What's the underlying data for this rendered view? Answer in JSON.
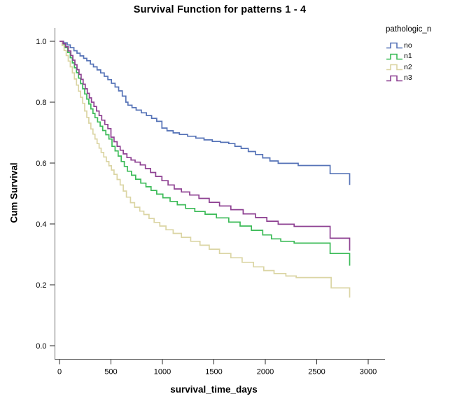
{
  "chart_data": {
    "type": "line",
    "subtype": "kaplan-meier-step",
    "title": "Survival Function for patterns 1 - 4",
    "xlabel": "survival_time_days",
    "ylabel": "Cum Survival",
    "legend_title": "pathologic_n",
    "legend_position": "top-right",
    "grid": false,
    "xlim": [
      0,
      3160
    ],
    "ylim": [
      0.0,
      1.0
    ],
    "x_ticks": [
      "0",
      "500",
      "1000",
      "1500",
      "2000",
      "2500",
      "3000"
    ],
    "x_tick_values": [
      0,
      500,
      1000,
      1500,
      2000,
      2500,
      3000
    ],
    "y_ticks": [
      "0.0",
      "0.2",
      "0.4",
      "0.6",
      "0.8",
      "1.0"
    ],
    "y_tick_values": [
      0.0,
      0.2,
      0.4,
      0.6,
      0.8,
      1.0
    ],
    "axis_color": "#6b6b6b",
    "tick_color": "#262626",
    "series": [
      {
        "name": "no",
        "color": "#5673b7",
        "points": [
          [
            0,
            1.0
          ],
          [
            40,
            0.995
          ],
          [
            75,
            0.988
          ],
          [
            105,
            0.979
          ],
          [
            140,
            0.969
          ],
          [
            170,
            0.961
          ],
          [
            200,
            0.952
          ],
          [
            235,
            0.944
          ],
          [
            265,
            0.936
          ],
          [
            300,
            0.925
          ],
          [
            330,
            0.916
          ],
          [
            365,
            0.906
          ],
          [
            400,
            0.896
          ],
          [
            435,
            0.885
          ],
          [
            470,
            0.874
          ],
          [
            505,
            0.862
          ],
          [
            540,
            0.85
          ],
          [
            575,
            0.837
          ],
          [
            610,
            0.82
          ],
          [
            645,
            0.8
          ],
          [
            665,
            0.79
          ],
          [
            705,
            0.782
          ],
          [
            745,
            0.774
          ],
          [
            795,
            0.765
          ],
          [
            845,
            0.756
          ],
          [
            895,
            0.747
          ],
          [
            945,
            0.737
          ],
          [
            995,
            0.715
          ],
          [
            1045,
            0.706
          ],
          [
            1105,
            0.699
          ],
          [
            1165,
            0.694
          ],
          [
            1245,
            0.688
          ],
          [
            1325,
            0.682
          ],
          [
            1405,
            0.676
          ],
          [
            1485,
            0.671
          ],
          [
            1565,
            0.668
          ],
          [
            1645,
            0.664
          ],
          [
            1705,
            0.655
          ],
          [
            1765,
            0.648
          ],
          [
            1835,
            0.638
          ],
          [
            1905,
            0.628
          ],
          [
            1975,
            0.617
          ],
          [
            2045,
            0.607
          ],
          [
            2125,
            0.599
          ],
          [
            2320,
            0.592
          ],
          [
            2630,
            0.565
          ],
          [
            2820,
            0.528
          ]
        ]
      },
      {
        "name": "n1",
        "color": "#3cbb58",
        "points": [
          [
            0,
            1.0
          ],
          [
            30,
            0.991
          ],
          [
            55,
            0.979
          ],
          [
            80,
            0.963
          ],
          [
            105,
            0.946
          ],
          [
            125,
            0.929
          ],
          [
            145,
            0.913
          ],
          [
            165,
            0.897
          ],
          [
            185,
            0.879
          ],
          [
            205,
            0.861
          ],
          [
            225,
            0.844
          ],
          [
            245,
            0.827
          ],
          [
            265,
            0.81
          ],
          [
            285,
            0.794
          ],
          [
            305,
            0.778
          ],
          [
            325,
            0.763
          ],
          [
            345,
            0.749
          ],
          [
            370,
            0.735
          ],
          [
            395,
            0.721
          ],
          [
            420,
            0.707
          ],
          [
            450,
            0.693
          ],
          [
            480,
            0.679
          ],
          [
            510,
            0.655
          ],
          [
            540,
            0.64
          ],
          [
            570,
            0.623
          ],
          [
            600,
            0.605
          ],
          [
            630,
            0.589
          ],
          [
            660,
            0.573
          ],
          [
            700,
            0.56
          ],
          [
            740,
            0.547
          ],
          [
            790,
            0.534
          ],
          [
            840,
            0.522
          ],
          [
            890,
            0.51
          ],
          [
            945,
            0.498
          ],
          [
            1005,
            0.486
          ],
          [
            1075,
            0.474
          ],
          [
            1145,
            0.463
          ],
          [
            1225,
            0.451
          ],
          [
            1315,
            0.441
          ],
          [
            1415,
            0.432
          ],
          [
            1525,
            0.42
          ],
          [
            1645,
            0.406
          ],
          [
            1755,
            0.393
          ],
          [
            1865,
            0.379
          ],
          [
            1975,
            0.364
          ],
          [
            2060,
            0.351
          ],
          [
            2150,
            0.343
          ],
          [
            2280,
            0.337
          ],
          [
            2630,
            0.303
          ],
          [
            2820,
            0.263
          ]
        ]
      },
      {
        "name": "n2",
        "color": "#dbd5a4",
        "points": [
          [
            0,
            1.0
          ],
          [
            25,
            0.986
          ],
          [
            45,
            0.97
          ],
          [
            65,
            0.953
          ],
          [
            85,
            0.935
          ],
          [
            105,
            0.916
          ],
          [
            125,
            0.896
          ],
          [
            145,
            0.876
          ],
          [
            165,
            0.856
          ],
          [
            185,
            0.836
          ],
          [
            205,
            0.816
          ],
          [
            225,
            0.796
          ],
          [
            245,
            0.771
          ],
          [
            265,
            0.75
          ],
          [
            285,
            0.731
          ],
          [
            305,
            0.712
          ],
          [
            325,
            0.695
          ],
          [
            345,
            0.679
          ],
          [
            365,
            0.664
          ],
          [
            385,
            0.649
          ],
          [
            405,
            0.635
          ],
          [
            430,
            0.62
          ],
          [
            455,
            0.605
          ],
          [
            480,
            0.591
          ],
          [
            505,
            0.577
          ],
          [
            530,
            0.563
          ],
          [
            560,
            0.546
          ],
          [
            590,
            0.528
          ],
          [
            620,
            0.508
          ],
          [
            650,
            0.488
          ],
          [
            690,
            0.47
          ],
          [
            730,
            0.455
          ],
          [
            780,
            0.442
          ],
          [
            820,
            0.431
          ],
          [
            870,
            0.418
          ],
          [
            920,
            0.405
          ],
          [
            975,
            0.393
          ],
          [
            1035,
            0.381
          ],
          [
            1105,
            0.369
          ],
          [
            1185,
            0.356
          ],
          [
            1275,
            0.343
          ],
          [
            1365,
            0.33
          ],
          [
            1455,
            0.317
          ],
          [
            1555,
            0.303
          ],
          [
            1665,
            0.289
          ],
          [
            1775,
            0.274
          ],
          [
            1885,
            0.259
          ],
          [
            1985,
            0.247
          ],
          [
            2085,
            0.237
          ],
          [
            2200,
            0.229
          ],
          [
            2300,
            0.224
          ],
          [
            2640,
            0.19
          ],
          [
            2820,
            0.158
          ]
        ]
      },
      {
        "name": "n3",
        "color": "#8e4192",
        "points": [
          [
            0,
            1.0
          ],
          [
            35,
            0.992
          ],
          [
            60,
            0.982
          ],
          [
            85,
            0.968
          ],
          [
            110,
            0.953
          ],
          [
            130,
            0.938
          ],
          [
            150,
            0.923
          ],
          [
            170,
            0.907
          ],
          [
            190,
            0.891
          ],
          [
            210,
            0.875
          ],
          [
            230,
            0.859
          ],
          [
            250,
            0.844
          ],
          [
            270,
            0.829
          ],
          [
            290,
            0.814
          ],
          [
            310,
            0.8
          ],
          [
            335,
            0.786
          ],
          [
            360,
            0.771
          ],
          [
            385,
            0.756
          ],
          [
            410,
            0.741
          ],
          [
            440,
            0.727
          ],
          [
            470,
            0.713
          ],
          [
            500,
            0.685
          ],
          [
            530,
            0.67
          ],
          [
            560,
            0.655
          ],
          [
            590,
            0.642
          ],
          [
            620,
            0.63
          ],
          [
            655,
            0.618
          ],
          [
            695,
            0.61
          ],
          [
            735,
            0.603
          ],
          [
            785,
            0.594
          ],
          [
            835,
            0.582
          ],
          [
            885,
            0.569
          ],
          [
            935,
            0.556
          ],
          [
            995,
            0.542
          ],
          [
            1055,
            0.528
          ],
          [
            1115,
            0.515
          ],
          [
            1185,
            0.505
          ],
          [
            1265,
            0.495
          ],
          [
            1355,
            0.484
          ],
          [
            1455,
            0.471
          ],
          [
            1555,
            0.459
          ],
          [
            1665,
            0.447
          ],
          [
            1785,
            0.433
          ],
          [
            1905,
            0.421
          ],
          [
            2015,
            0.409
          ],
          [
            2125,
            0.399
          ],
          [
            2280,
            0.392
          ],
          [
            2630,
            0.353
          ],
          [
            2820,
            0.312
          ]
        ]
      }
    ]
  }
}
